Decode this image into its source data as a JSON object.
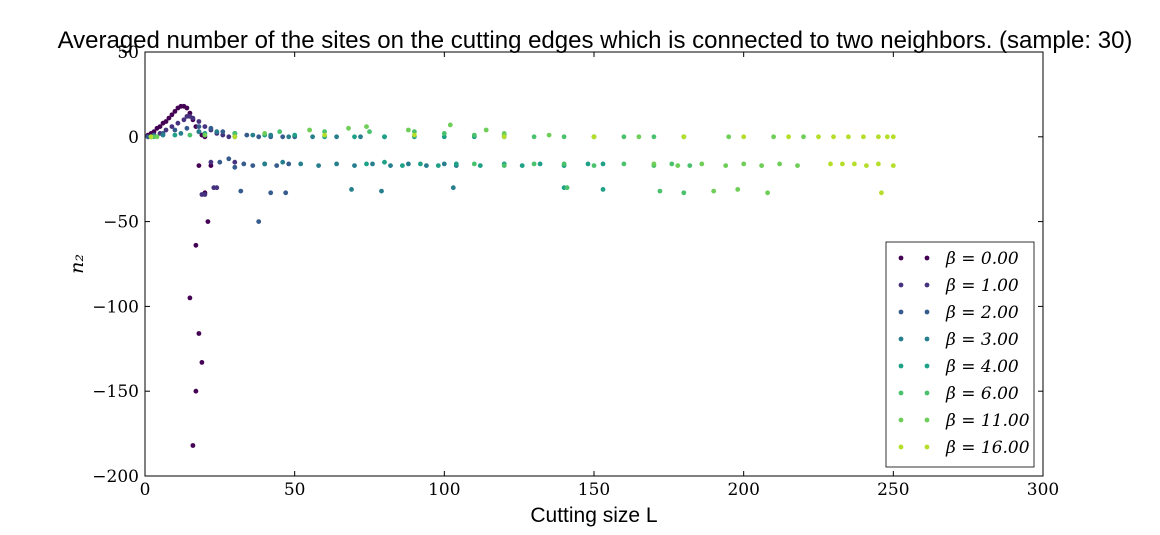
{
  "chart_data": {
    "type": "scatter",
    "title": "Averaged number of the sites on the cutting edges which is connected to two neighbors. (sample: 30)",
    "xlabel": "Cutting size L",
    "ylabel": "n₂",
    "xlim": [
      0,
      300
    ],
    "ylim": [
      -200,
      50
    ],
    "xticks": [
      0,
      50,
      100,
      150,
      200,
      250,
      300
    ],
    "yticks": [
      50,
      0,
      -50,
      -100,
      -150,
      -200
    ],
    "xtick_labels": [
      "0",
      "50",
      "100",
      "150",
      "200",
      "250",
      "300"
    ],
    "ytick_labels": [
      "50",
      "0",
      "−50",
      "−100",
      "−150",
      "−200"
    ],
    "grid": false,
    "legend_position": "lower-right",
    "series": [
      {
        "name": "β = 0.00",
        "color": "#440154",
        "points": [
          [
            1,
            1
          ],
          [
            2,
            2
          ],
          [
            3,
            3
          ],
          [
            4,
            5
          ],
          [
            5,
            6
          ],
          [
            6,
            8
          ],
          [
            7,
            9
          ],
          [
            8,
            11
          ],
          [
            9,
            13
          ],
          [
            10,
            15
          ],
          [
            11,
            17
          ],
          [
            12,
            18
          ],
          [
            13,
            18
          ],
          [
            14,
            17
          ],
          [
            15,
            14
          ],
          [
            16,
            10
          ],
          [
            17,
            6
          ],
          [
            18,
            3
          ],
          [
            19,
            1
          ],
          [
            20,
            0
          ],
          [
            15,
            -95
          ],
          [
            16,
            -182
          ],
          [
            17,
            -150
          ],
          [
            17,
            -64
          ],
          [
            18,
            -116
          ],
          [
            19,
            -133
          ],
          [
            20,
            -33
          ],
          [
            18,
            -17
          ],
          [
            22,
            -17
          ],
          [
            21,
            -50
          ]
        ]
      },
      {
        "name": "β = 1.00",
        "color": "#46327e",
        "points": [
          [
            1,
            0
          ],
          [
            3,
            1
          ],
          [
            5,
            2
          ],
          [
            7,
            4
          ],
          [
            9,
            6
          ],
          [
            11,
            8
          ],
          [
            13,
            10
          ],
          [
            14,
            12
          ],
          [
            15,
            12
          ],
          [
            16,
            11
          ],
          [
            18,
            9
          ],
          [
            20,
            6
          ],
          [
            22,
            4
          ],
          [
            24,
            2
          ],
          [
            26,
            1
          ],
          [
            28,
            0
          ],
          [
            30,
            0
          ],
          [
            19,
            -34
          ],
          [
            20,
            -34
          ],
          [
            23,
            -30
          ],
          [
            22,
            -15
          ],
          [
            24,
            -30
          ],
          [
            30,
            -15
          ]
        ]
      },
      {
        "name": "β = 2.00",
        "color": "#365c8d",
        "points": [
          [
            1,
            0
          ],
          [
            3,
            1
          ],
          [
            6,
            2
          ],
          [
            10,
            4
          ],
          [
            14,
            5
          ],
          [
            18,
            6
          ],
          [
            22,
            5
          ],
          [
            26,
            3
          ],
          [
            30,
            2
          ],
          [
            34,
            1
          ],
          [
            38,
            0
          ],
          [
            42,
            0
          ],
          [
            46,
            0
          ],
          [
            50,
            0
          ],
          [
            25,
            -15
          ],
          [
            28,
            -13
          ],
          [
            30,
            -18
          ],
          [
            33,
            -16
          ],
          [
            36,
            -17
          ],
          [
            40,
            -16
          ],
          [
            44,
            -17
          ],
          [
            48,
            -16
          ],
          [
            32,
            -32
          ],
          [
            38,
            -50
          ],
          [
            42,
            -33
          ],
          [
            47,
            -33
          ]
        ]
      },
      {
        "name": "β = 3.00",
        "color": "#277f8e",
        "points": [
          [
            2,
            0
          ],
          [
            6,
            1
          ],
          [
            12,
            2
          ],
          [
            18,
            3
          ],
          [
            24,
            3
          ],
          [
            30,
            2
          ],
          [
            36,
            1
          ],
          [
            42,
            1
          ],
          [
            48,
            0
          ],
          [
            56,
            0
          ],
          [
            64,
            0
          ],
          [
            72,
            0
          ],
          [
            80,
            0
          ],
          [
            40,
            -16
          ],
          [
            46,
            -15
          ],
          [
            52,
            -16
          ],
          [
            58,
            -17
          ],
          [
            64,
            -16
          ],
          [
            70,
            -17
          ],
          [
            76,
            -16
          ],
          [
            82,
            -17
          ],
          [
            88,
            -16
          ],
          [
            94,
            -17
          ],
          [
            100,
            -16
          ],
          [
            104,
            -17
          ],
          [
            69,
            -31
          ],
          [
            79,
            -32
          ],
          [
            103,
            -30
          ]
        ]
      },
      {
        "name": "β = 4.00",
        "color": "#1fa187",
        "points": [
          [
            2,
            0
          ],
          [
            10,
            1
          ],
          [
            20,
            2
          ],
          [
            30,
            2
          ],
          [
            40,
            1
          ],
          [
            50,
            1
          ],
          [
            60,
            0
          ],
          [
            70,
            0
          ],
          [
            80,
            0
          ],
          [
            90,
            0
          ],
          [
            100,
            0
          ],
          [
            110,
            0
          ],
          [
            120,
            0
          ],
          [
            74,
            -16
          ],
          [
            80,
            -15
          ],
          [
            86,
            -17
          ],
          [
            92,
            -16
          ],
          [
            98,
            -17
          ],
          [
            104,
            -16
          ],
          [
            112,
            -17
          ],
          [
            120,
            -16
          ],
          [
            126,
            -17
          ],
          [
            132,
            -16
          ],
          [
            140,
            -17
          ],
          [
            148,
            -16
          ],
          [
            153,
            -16
          ],
          [
            140,
            -30
          ],
          [
            153,
            -31
          ]
        ]
      },
      {
        "name": "β = 6.00",
        "color": "#4ac16d",
        "points": [
          [
            3,
            0
          ],
          [
            15,
            1
          ],
          [
            30,
            2
          ],
          [
            45,
            3
          ],
          [
            60,
            3
          ],
          [
            75,
            3
          ],
          [
            90,
            3
          ],
          [
            100,
            2
          ],
          [
            110,
            1
          ],
          [
            120,
            1
          ],
          [
            130,
            0
          ],
          [
            140,
            0
          ],
          [
            150,
            0
          ],
          [
            160,
            0
          ],
          [
            170,
            0
          ],
          [
            180,
            0
          ],
          [
            110,
            -16
          ],
          [
            120,
            -17
          ],
          [
            130,
            -16
          ],
          [
            140,
            -16
          ],
          [
            150,
            -17
          ],
          [
            160,
            -16
          ],
          [
            170,
            -17
          ],
          [
            176,
            -16
          ],
          [
            182,
            -17
          ],
          [
            141,
            -30
          ],
          [
            172,
            -32
          ],
          [
            180,
            -33
          ]
        ]
      },
      {
        "name": "β = 11.00",
        "color": "#6ece58",
        "points": [
          [
            4,
            0
          ],
          [
            20,
            1
          ],
          [
            40,
            2
          ],
          [
            55,
            4
          ],
          [
            68,
            5
          ],
          [
            74,
            6
          ],
          [
            88,
            4
          ],
          [
            102,
            7
          ],
          [
            114,
            4
          ],
          [
            120,
            2
          ],
          [
            135,
            1
          ],
          [
            150,
            0
          ],
          [
            165,
            0
          ],
          [
            180,
            0
          ],
          [
            195,
            0
          ],
          [
            210,
            0
          ],
          [
            220,
            0
          ],
          [
            170,
            -16
          ],
          [
            178,
            -17
          ],
          [
            186,
            -16
          ],
          [
            194,
            -17
          ],
          [
            200,
            -16
          ],
          [
            206,
            -17
          ],
          [
            212,
            -16
          ],
          [
            218,
            -17
          ],
          [
            190,
            -32
          ],
          [
            198,
            -31
          ],
          [
            208,
            -33
          ]
        ]
      },
      {
        "name": "β = 16.00",
        "color": "#b5de2b",
        "points": [
          [
            2,
            0
          ],
          [
            30,
            0
          ],
          [
            60,
            1
          ],
          [
            90,
            1
          ],
          [
            120,
            0
          ],
          [
            150,
            0
          ],
          [
            180,
            0
          ],
          [
            200,
            0
          ],
          [
            215,
            0
          ],
          [
            225,
            0
          ],
          [
            230,
            0
          ],
          [
            235,
            0
          ],
          [
            240,
            0
          ],
          [
            245,
            0
          ],
          [
            248,
            0
          ],
          [
            250,
            0
          ],
          [
            229,
            -16
          ],
          [
            233,
            -16
          ],
          [
            237,
            -16
          ],
          [
            241,
            -17
          ],
          [
            245,
            -16
          ],
          [
            250,
            -17
          ],
          [
            246,
            -33
          ]
        ]
      }
    ]
  }
}
